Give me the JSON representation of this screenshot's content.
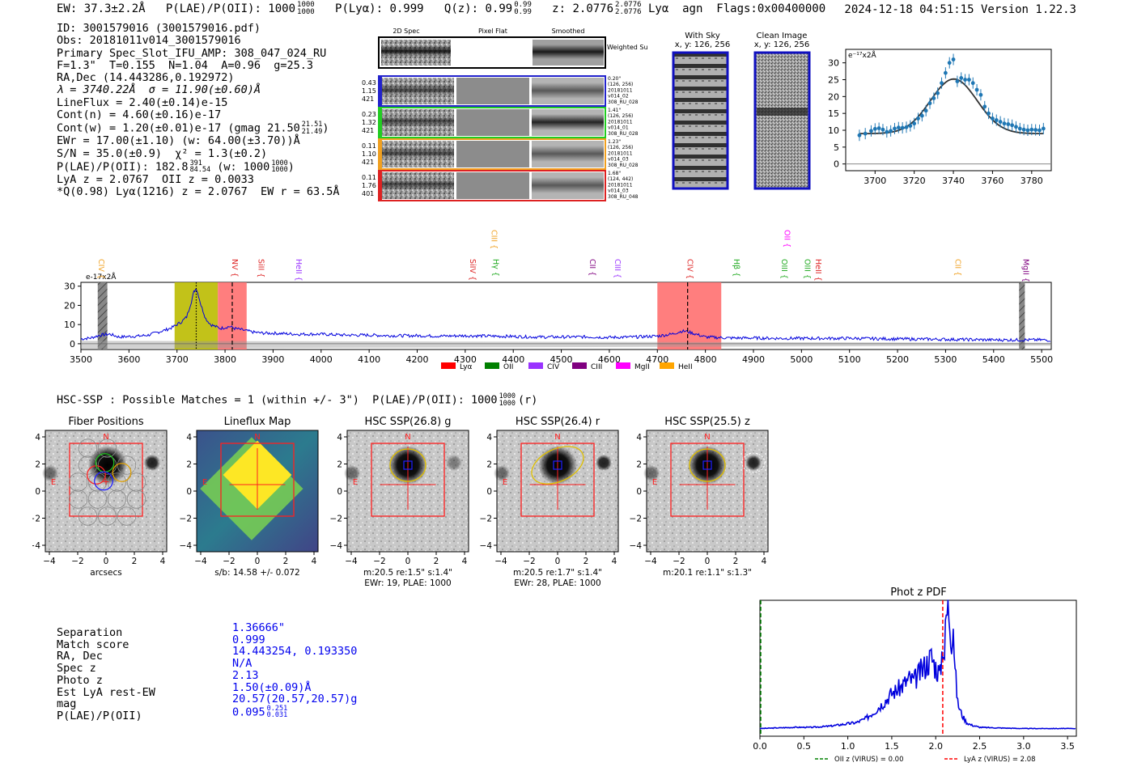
{
  "header": {
    "ew": "EW: 37.3±2.2Å",
    "plae_label": "P(LAE)/P(OII): 1000",
    "plae_sup": "1000",
    "plae_sub": "1000",
    "plya": "P(Lyα): 0.999",
    "qz_label": "Q(z): 0.99",
    "qz_sup": "0.99",
    "qz_sub": "0.99",
    "z_label": "z: 2.0776",
    "z_sup": "2.0776",
    "z_sub": "2.0776",
    "line": "Lyα  agn",
    "flags": "Flags:0x00400000",
    "datetime": "2024-12-18 04:51:15",
    "version": "Version 1.22.3"
  },
  "info": {
    "id": "ID: 3001579016 (3001579016.pdf)",
    "obs": "Obs: 20181011v014_3001579016",
    "primary": "Primary Spec_Slot_IFU_AMP: 308_047_024_RU",
    "params": "F=1.3\"  T=0.155  N=1.04  A=0.96  g=25.3",
    "radec": "RA,Dec (14.443286,0.192972)",
    "lambda": "λ = 3740.22Å  σ = 11.90(±0.60)Å",
    "lineflux": "LineFlux = 2.40(±0.14)e-15",
    "contn": "Cont(n) = 4.60(±0.16)e-17",
    "contw": "Cont(w) = 1.20(±0.01)e-17 (gmag 21.50",
    "contw_sup": "21.51",
    "contw_sub": "21.49",
    "contw_end": ")",
    "ewr": "EWr = 17.00(±1.10) (w: 64.00(±3.70))Å",
    "sn": "S/N = 35.0(±0.9)  χ² = 1.3(±0.2)",
    "plae": "P(LAE)/P(OII): 182.8",
    "plae_sup": "391",
    "plae_sub": "84.54",
    "plae_w": " (w: 1000",
    "plae_w_sup": "1000",
    "plae_w_sub": "1000",
    "plae_end": ")",
    "lya_z": "LyA z = 2.0767  OII z = 0.0033",
    "q": "*Q(0.98) Lyα(1216) z = 2.0767  EW r = 63.5Å"
  },
  "spec2d": {
    "col_labels": [
      "2D Spec",
      "Pixel Flat",
      "Smoothed"
    ],
    "weighted": "Weighted Sum",
    "rows": [
      {
        "left": [
          "0.43",
          "1.15",
          "421"
        ],
        "right": [
          "0.20\"",
          "(126, 256)",
          "20181011",
          "v014_02",
          "308_RU_028"
        ],
        "color": "#2222cc"
      },
      {
        "left": [
          "0.23",
          "1.32",
          "421"
        ],
        "right": [
          "1.41\"",
          "(126, 256)",
          "20181011",
          "v014_01",
          "308_RU_028"
        ],
        "color": "#22cc22"
      },
      {
        "left": [
          "0.11",
          "1.10",
          "421"
        ],
        "right": [
          "1.23\"",
          "(126, 256)",
          "20181011",
          "v014_03",
          "308_RU_028"
        ],
        "color": "#f0a020"
      },
      {
        "left": [
          "0.11",
          "1.76",
          "401"
        ],
        "right": [
          "1.68\"",
          "(124, 442)",
          "20181011",
          "v014_03",
          "308_RU_048"
        ],
        "color": "#dd2222"
      }
    ]
  },
  "sky": {
    "with_sky": "With Sky",
    "with_sky_xy": "x, y: 126, 256",
    "clean": "Clean Image",
    "clean_xy": "x, y: 126, 256"
  },
  "zoom_chart": {
    "ylabel": "e⁻¹⁷x2Å",
    "xticks": [
      "3700",
      "3720",
      "3740",
      "3760",
      "3780"
    ],
    "yticks": [
      "0",
      "5",
      "10",
      "15",
      "20",
      "25",
      "30"
    ]
  },
  "chart_data": [
    {
      "type": "scatter",
      "title": "",
      "ylabel": "e-17x2Å",
      "xlim": [
        3685,
        3790
      ],
      "ylim": [
        -2,
        34
      ],
      "x": [
        3692,
        3695,
        3698,
        3700,
        3702,
        3704,
        3706,
        3708,
        3710,
        3712,
        3714,
        3716,
        3718,
        3720,
        3722,
        3724,
        3726,
        3728,
        3730,
        3732,
        3734,
        3736,
        3738,
        3740,
        3742,
        3744,
        3746,
        3748,
        3750,
        3752,
        3754,
        3756,
        3758,
        3760,
        3762,
        3764,
        3766,
        3768,
        3770,
        3772,
        3774,
        3776,
        3778,
        3780,
        3782,
        3784,
        3786
      ],
      "y": [
        8.5,
        9.0,
        9.8,
        10.4,
        10.6,
        10.2,
        9.5,
        9.8,
        10.5,
        10.8,
        10.7,
        10.9,
        11.3,
        12.0,
        13.5,
        14.3,
        15.8,
        18.0,
        19.5,
        21.0,
        24.0,
        27.0,
        30.0,
        31.0,
        24.5,
        25.5,
        25.0,
        25.0,
        24.0,
        22.0,
        20.5,
        17.0,
        15.0,
        13.5,
        13.0,
        12.5,
        12.0,
        11.8,
        11.5,
        11.0,
        10.5,
        10.2,
        10.0,
        10.2,
        10.1,
        10.0,
        10.5
      ],
      "model": {
        "center": 3740.22,
        "sigma": 11.9,
        "amplitude": 16.2,
        "continuum": 9.0
      }
    },
    {
      "type": "line",
      "ylabel": "e-17x2Å",
      "xlim": [
        3500,
        5520
      ],
      "ylim": [
        -3,
        32
      ],
      "xticks": [
        3500,
        3600,
        3700,
        3800,
        3900,
        4000,
        4100,
        4200,
        4300,
        4400,
        4500,
        4600,
        4700,
        4800,
        4900,
        5000,
        5100,
        5200,
        5300,
        5400,
        5500
      ],
      "yticks": [
        0,
        10,
        20,
        30
      ],
      "x": [
        3500,
        3520,
        3540,
        3560,
        3580,
        3600,
        3620,
        3640,
        3660,
        3680,
        3690,
        3700,
        3710,
        3720,
        3730,
        3735,
        3740,
        3745,
        3750,
        3760,
        3770,
        3780,
        3790,
        3800,
        3810,
        3820,
        3830,
        3840,
        3860,
        3880,
        3900,
        3950,
        4000,
        4050,
        4100,
        4150,
        4200,
        4250,
        4300,
        4350,
        4400,
        4450,
        4500,
        4550,
        4600,
        4650,
        4700,
        4730,
        4750,
        4760,
        4780,
        4800,
        4850,
        4900,
        4950,
        5000,
        5100,
        5200,
        5300,
        5400,
        5500,
        5520
      ],
      "y": [
        2.5,
        3,
        4.5,
        5,
        3.5,
        3.8,
        4,
        4.5,
        6,
        7.5,
        8.5,
        10,
        11.5,
        14,
        22,
        27,
        29,
        25,
        20,
        13,
        10,
        9,
        8,
        8.5,
        9,
        8,
        7.5,
        7,
        6,
        5.5,
        5.5,
        5,
        5,
        4.5,
        4.5,
        4.2,
        4.2,
        4,
        4.2,
        4,
        3.8,
        3.5,
        3.5,
        3.6,
        3.3,
        3.5,
        4,
        5,
        6.5,
        6.5,
        5,
        3.5,
        3,
        3,
        2.8,
        2.8,
        2.8,
        2.5,
        2.3,
        2,
        2,
        1.8
      ],
      "highlights": [
        {
          "x0": 3695,
          "x1": 3785,
          "color": "#bbbb00"
        },
        {
          "x0": 3785,
          "x1": 3845,
          "color": "#ff7070"
        },
        {
          "x0": 4700,
          "x1": 4833,
          "color": "#ff7070"
        }
      ],
      "hatched": [
        {
          "x0": 3535,
          "x1": 3555
        },
        {
          "x0": 5453,
          "x1": 5465
        }
      ],
      "vlines": [
        {
          "x": 3740,
          "style": "dotted"
        },
        {
          "x": 3815,
          "style": "dashed"
        },
        {
          "x": 4763,
          "style": "dashed"
        }
      ],
      "line_labels": [
        {
          "label": "CIV",
          "x": 3537,
          "color": "#f0a020",
          "row": 1
        },
        {
          "label": "NV",
          "x": 3815,
          "color": "#dd2222",
          "row": 1
        },
        {
          "label": "SiII",
          "x": 3870,
          "color": "#dd2222",
          "row": 1
        },
        {
          "label": "HeII",
          "x": 3948,
          "color": "#9933ff",
          "row": 1
        },
        {
          "label": "CIII",
          "x": 4355,
          "color": "#f0a020",
          "row": 0
        },
        {
          "label": "SiIV",
          "x": 4310,
          "color": "#dd2222",
          "row": 1
        },
        {
          "label": "Hγ",
          "x": 4358,
          "color": "#22aa22",
          "row": 1
        },
        {
          "label": "CII",
          "x": 4560,
          "color": "#800080",
          "row": 1
        },
        {
          "label": "CIII",
          "x": 4612,
          "color": "#9933ff",
          "row": 1
        },
        {
          "label": "CIV",
          "x": 4763,
          "color": "#dd2222",
          "row": 1
        },
        {
          "label": "OII",
          "x": 4965,
          "color": "#ff00ff",
          "row": 0
        },
        {
          "label": "Hβ",
          "x": 4860,
          "color": "#22aa22",
          "row": 1
        },
        {
          "label": "OIII",
          "x": 4959,
          "color": "#22aa22",
          "row": 1
        },
        {
          "label": "OIII",
          "x": 5007,
          "color": "#22aa22",
          "row": 1
        },
        {
          "label": "HeII",
          "x": 5030,
          "color": "#dd2222",
          "row": 1
        },
        {
          "label": "CII",
          "x": 5320,
          "color": "#f0a020",
          "row": 1
        },
        {
          "label": "MgII",
          "x": 5462,
          "color": "#800080",
          "row": 1
        }
      ],
      "legend": [
        {
          "label": "Lyα",
          "color": "#ff0000"
        },
        {
          "label": "OII",
          "color": "#008000"
        },
        {
          "label": "CIV",
          "color": "#9933ff"
        },
        {
          "label": "CIII",
          "color": "#800080"
        },
        {
          "label": "MgII",
          "color": "#ff00ff"
        },
        {
          "label": "HeII",
          "color": "#ffa500"
        }
      ]
    },
    {
      "type": "line",
      "title": "Phot z PDF",
      "xlim": [
        0,
        3.6
      ],
      "xticks": [
        0.0,
        0.5,
        1.0,
        1.5,
        2.0,
        2.5,
        3.0,
        3.5
      ],
      "x": [
        0,
        0.2,
        0.4,
        0.6,
        0.8,
        0.9,
        1.0,
        1.1,
        1.2,
        1.3,
        1.4,
        1.5,
        1.6,
        1.7,
        1.75,
        1.8,
        1.85,
        1.9,
        1.95,
        2.0,
        2.05,
        2.08,
        2.1,
        2.12,
        2.15,
        2.18,
        2.2,
        2.22,
        2.25,
        2.3,
        2.35,
        2.4,
        2.5,
        2.7,
        3.0,
        3.3,
        3.6
      ],
      "y": [
        0.01,
        0.015,
        0.02,
        0.02,
        0.03,
        0.04,
        0.05,
        0.06,
        0.09,
        0.15,
        0.22,
        0.3,
        0.35,
        0.42,
        0.4,
        0.45,
        0.5,
        0.55,
        0.6,
        0.52,
        0.45,
        0.72,
        0.62,
        0.95,
        1.0,
        0.78,
        0.9,
        0.5,
        0.22,
        0.12,
        0.06,
        0.04,
        0.02,
        0.015,
        0.01,
        0.01,
        0.01
      ],
      "vlines": [
        {
          "x": 0.0,
          "color": "#008000",
          "style": "dashed"
        },
        {
          "x": 2.08,
          "color": "#ff0000",
          "style": "dashed"
        }
      ],
      "legend": [
        {
          "label": "OII z (VIRUS) = 0.00",
          "color": "#008000"
        },
        {
          "label": "LyA z (VIRUS) = 2.08",
          "color": "#ff0000"
        }
      ]
    }
  ],
  "hsc": {
    "line": "HSC-SSP : Possible Matches = 1 (within +/- 3\")  P(LAE)/P(OII): 1000",
    "line_sup": "1000",
    "line_sub": "1000",
    "line_end": "(r)",
    "cutouts": [
      {
        "title": "Fiber Positions",
        "captions": [
          "arcsecs"
        ]
      },
      {
        "title": "Lineflux Map",
        "captions": [
          "s/b: 14.58 +/- 0.072"
        ]
      },
      {
        "title": "HSC SSP(26.8) g",
        "captions": [
          "m:20.5  re:1.5\"  s:1.4\"",
          "EWr: 19, PLAE: 1000"
        ]
      },
      {
        "title": "HSC SSP(26.4) r",
        "captions": [
          "m:20.5  re:1.7\"  s:1.4\"",
          "EWr: 28, PLAE: 1000"
        ]
      },
      {
        "title": "HSC SSP(25.5) z",
        "captions": [
          "m:20.1  re:1.1\"  s:1.3\""
        ]
      }
    ],
    "axis_ticks": [
      "−4",
      "−2",
      "0",
      "2",
      "4"
    ],
    "yaxis_ticks": [
      "4",
      "2",
      "0",
      "−2",
      "−4"
    ],
    "north": "N",
    "east": "E"
  },
  "match": {
    "labels": [
      "Separation",
      "Match score",
      "RA, Dec",
      "Spec z",
      "Photo z",
      "Est LyA rest-EW",
      "mag",
      "P(LAE)/P(OII)"
    ],
    "values": [
      "1.36666\"",
      "0.999",
      "14.443254, 0.193350",
      "N/A",
      "2.13",
      "1.50(±0.09)Å",
      "20.57(20.57,20.57)g",
      "0.095"
    ],
    "plae_sup": "0.251",
    "plae_sub": "0.031"
  },
  "colors": {
    "blue": "#0000ee",
    "data": "#1f77b4",
    "red": "#ff0000",
    "yellow": "#bbbb00"
  }
}
